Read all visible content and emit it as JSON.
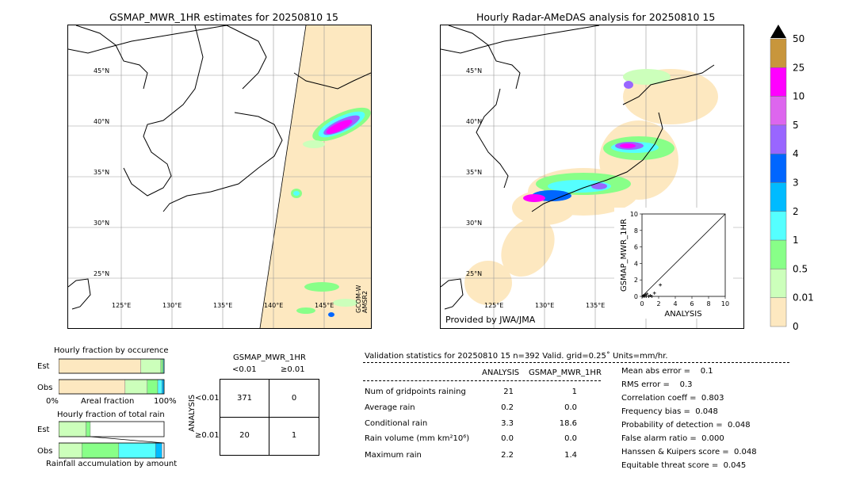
{
  "left_map": {
    "title": "GSMAP_MWR_1HR estimates for 20250810 15",
    "lat_labels": [
      "45°N",
      "40°N",
      "35°N",
      "30°N",
      "25°N"
    ],
    "lon_labels": [
      "125°E",
      "130°E",
      "135°E",
      "140°E",
      "145°E"
    ],
    "sensor_label_1": "GCOM-W",
    "sensor_label_2": "AMSR2"
  },
  "right_map": {
    "title": "Hourly Radar-AMeDAS analysis for 20250810 15",
    "lat_labels": [
      "45°N",
      "40°N",
      "35°N",
      "30°N",
      "25°N"
    ],
    "lon_labels": [
      "125°E",
      "130°E",
      "135°E",
      "140°E",
      "145°E"
    ],
    "credit": "Provided by JWA/JMA"
  },
  "colorbar": {
    "labels": [
      "50",
      "25",
      "10",
      "5",
      "4",
      "3",
      "2",
      "1",
      "0.5",
      "0.01",
      "0"
    ],
    "colors": [
      "#c8963c",
      "#ff00ff",
      "#dd66ee",
      "#9966ff",
      "#0066ff",
      "#00bbff",
      "#55ffff",
      "#88ff88",
      "#ccffbb",
      "#fde8c0"
    ]
  },
  "chart_data": [
    {
      "type": "scatter",
      "title": "",
      "xlabel": "ANALYSIS",
      "ylabel": "GSMAP_MWR_1HR",
      "xlim": [
        0,
        10
      ],
      "ylim": [
        0,
        10
      ],
      "xticks": [
        "0",
        "2",
        "4",
        "6",
        "8",
        "10"
      ],
      "yticks": [
        "0",
        "2",
        "4",
        "6",
        "8",
        "10"
      ],
      "x": [
        0.1,
        0.2,
        0.3,
        0.4,
        0.5,
        0.6,
        0.8,
        1.0,
        1.2,
        1.5,
        2.2
      ],
      "y": [
        0.0,
        0.1,
        0.0,
        0.2,
        0.0,
        0.3,
        0.0,
        0.1,
        0.0,
        0.4,
        1.4
      ]
    },
    {
      "type": "bar",
      "title": "Hourly fraction by occurence",
      "categories": [
        "Est",
        "Obs"
      ],
      "xlabel": "Areal fraction",
      "xticks": [
        "0%",
        "100%"
      ],
      "segments": [
        {
          "category": "Est",
          "fractions": [
            0.78,
            0.19,
            0.02,
            0.01
          ]
        },
        {
          "category": "Obs",
          "fractions": [
            0.63,
            0.21,
            0.1,
            0.04,
            0.02
          ]
        }
      ]
    },
    {
      "type": "bar",
      "title": "Hourly fraction of total rain",
      "categories": [
        "Est",
        "Obs"
      ],
      "xlabel": "Rainfall accumulation by amount",
      "segments": [
        {
          "category": "Est",
          "fractions": [
            0.26,
            0.04
          ]
        },
        {
          "category": "Obs",
          "fractions": [
            0.22,
            0.35,
            0.35,
            0.06
          ]
        }
      ]
    },
    {
      "type": "table",
      "title": "GSMAP_MWR_1HR",
      "col_headers": [
        "<0.01",
        "≥0.01"
      ],
      "row_axis_label": "ANALYSIS",
      "row_headers": [
        "<0.01",
        "≥0.01"
      ],
      "cells": [
        [
          "371",
          "0"
        ],
        [
          "20",
          "1"
        ]
      ]
    }
  ],
  "validation": {
    "header": "Validation statistics for 20250810 15  n=392 Valid. grid=0.25˚ Units=mm/hr.",
    "col_analysis": "ANALYSIS",
    "col_gsmap": "GSMAP_MWR_1HR",
    "rows": [
      {
        "label": "Num of gridpoints raining",
        "analysis": "21",
        "gsmap": "1"
      },
      {
        "label": "Average rain",
        "analysis": "0.2",
        "gsmap": "0.0"
      },
      {
        "label": "Conditional rain",
        "analysis": "3.3",
        "gsmap": "18.6"
      },
      {
        "label": "Rain volume (mm km²10⁶)",
        "analysis": "0.0",
        "gsmap": "0.0"
      },
      {
        "label": "Maximum rain",
        "analysis": "2.2",
        "gsmap": "1.4"
      }
    ],
    "scores": [
      "Mean abs error =    0.1",
      "RMS error =    0.3",
      "Correlation coeff =  0.803",
      "Frequency bias =  0.048",
      "Probability of detection =  0.048",
      "False alarm ratio =  0.000",
      "Hanssen & Kuipers score =  0.048",
      "Equitable threat score =  0.045"
    ]
  }
}
